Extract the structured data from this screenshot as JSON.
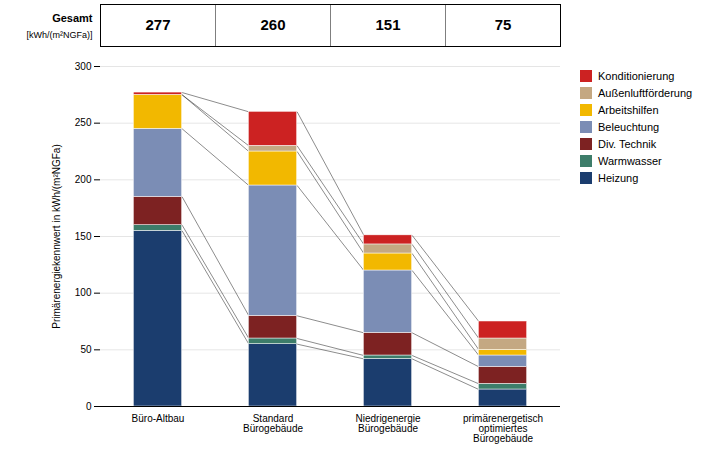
{
  "chart_data": {
    "type": "bar",
    "stacked": true,
    "ylabel": "Primärenergiekennwert in kWh/(m²NGFa)",
    "categories": [
      "Büro-Altbau",
      "Standard\nBürogebäude",
      "Niedrigenergie\nBürogebäude",
      "primärenergetisch\noptimiertes\nBürogebäude"
    ],
    "series": [
      {
        "name": "Heizung",
        "color": "#1b3d6e",
        "values": [
          155,
          55,
          42,
          15
        ]
      },
      {
        "name": "Warmwasser",
        "color": "#3d7d6a",
        "values": [
          5,
          5,
          3,
          5
        ]
      },
      {
        "name": "Div. Technik",
        "color": "#7d2222",
        "values": [
          25,
          20,
          20,
          15
        ]
      },
      {
        "name": "Beleuchtung",
        "color": "#7b8db5",
        "values": [
          60,
          115,
          55,
          10
        ]
      },
      {
        "name": "Arbeitshilfen",
        "color": "#f2b800",
        "values": [
          30,
          30,
          15,
          5
        ]
      },
      {
        "name": "Außenluftförderung",
        "color": "#c4a882",
        "values": [
          0,
          5,
          8,
          10
        ]
      },
      {
        "name": "Konditionierung",
        "color": "#cc2222",
        "values": [
          2,
          30,
          8,
          15
        ]
      }
    ],
    "totals": [
      277,
      260,
      151,
      75
    ],
    "annotations": [
      "Gesamt",
      "[kWh/(m²NGFa)]"
    ],
    "ylim": [
      0,
      300
    ],
    "yticks": [
      0,
      50,
      100,
      150,
      200,
      250,
      300
    ],
    "grid": true,
    "legend": "right"
  }
}
